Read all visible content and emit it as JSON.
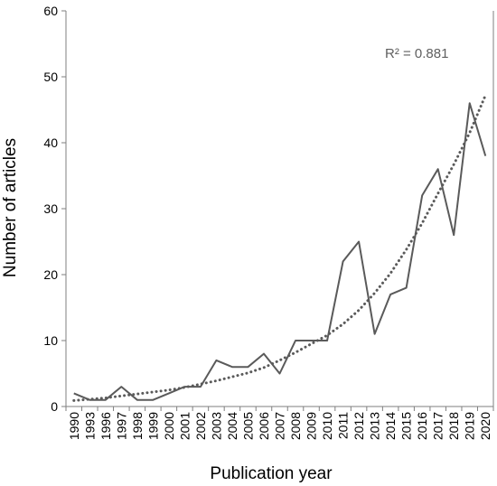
{
  "chart_data": {
    "type": "line",
    "xlabel": "Publication year",
    "ylabel": "Number of articles",
    "ylim": [
      0,
      60
    ],
    "yticks": [
      "0",
      "10",
      "20",
      "30",
      "40",
      "50",
      "60"
    ],
    "grid": false,
    "categories": [
      "1990",
      "1993",
      "1996",
      "1997",
      "1998",
      "1999",
      "2000",
      "2001",
      "2002",
      "2003",
      "2004",
      "2005",
      "2006",
      "2007",
      "2008",
      "2009",
      "2010",
      "2011",
      "2012",
      "2013",
      "2014",
      "2015",
      "2016",
      "2017",
      "2018",
      "2019",
      "2020"
    ],
    "series": [
      {
        "values": [
          2,
          1,
          1,
          3,
          1,
          1,
          2,
          3,
          3,
          7,
          6,
          6,
          8,
          5,
          10,
          10,
          10,
          22,
          25,
          11,
          17,
          18,
          32,
          36,
          26,
          46,
          38
        ],
        "color": "#5a5a5a",
        "style": "solid"
      },
      {
        "kind": "trendline",
        "values": [
          0.9,
          1.1,
          1.3,
          1.6,
          1.9,
          2.2,
          2.5,
          2.9,
          3.4,
          3.9,
          4.5,
          5.1,
          5.9,
          7.0,
          8.2,
          9.5,
          10.8,
          12.5,
          14.6,
          17.2,
          20.2,
          23.8,
          27.8,
          32.3,
          36.7,
          41.5,
          47.2
        ],
        "color": "#5a5a5a",
        "style": "dotted"
      }
    ],
    "annotation": "R² = 0.881"
  }
}
